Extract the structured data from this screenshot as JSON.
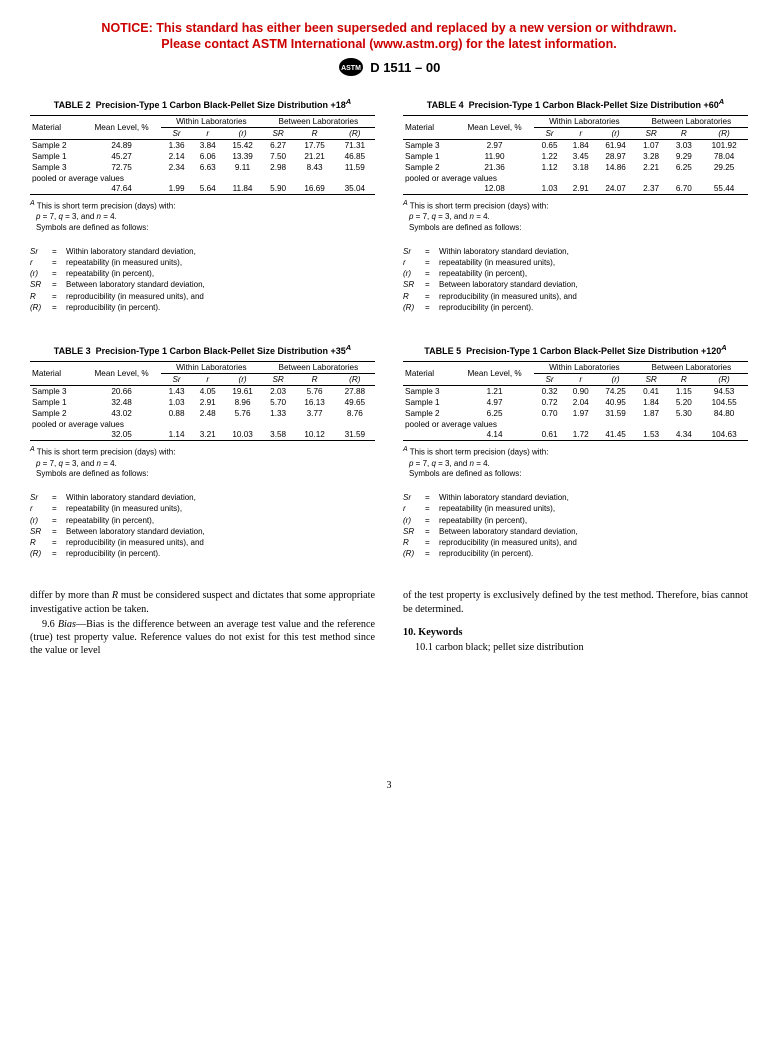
{
  "notice": {
    "line1": "NOTICE: This standard has either been superseded and replaced by a new version or withdrawn.",
    "line2": "Please contact ASTM International (www.astm.org) for the latest information."
  },
  "doc_id": "D 1511 – 00",
  "page_number": "3",
  "tables": {
    "t2": {
      "title_prefix": "TABLE 2",
      "title_rest": "Precision-Type 1 Carbon Black-Pellet Size Distribution +18",
      "sup": "A",
      "headers": {
        "material": "Material",
        "mean": "Mean Level, %",
        "within": "Within Laboratories",
        "between": "Between Laboratories",
        "sr": "Sr",
        "r": "r",
        "r_p": "(r)",
        "SR": "SR",
        "R": "R",
        "R_p": "(R)"
      },
      "rows": [
        {
          "m": "Sample 2",
          "mean": "24.89",
          "sr": "1.36",
          "r": "3.84",
          "rp": "15.42",
          "SR": "6.27",
          "R": "17.75",
          "Rp": "71.31"
        },
        {
          "m": "Sample 1",
          "mean": "45.27",
          "sr": "2.14",
          "r": "6.06",
          "rp": "13.39",
          "SR": "7.50",
          "R": "21.21",
          "Rp": "46.85"
        },
        {
          "m": "Sample 3",
          "mean": "72.75",
          "sr": "2.34",
          "r": "6.63",
          "rp": "9.11",
          "SR": "2.98",
          "R": "8.43",
          "Rp": "11.59"
        }
      ],
      "pooled_label": "pooled or average values",
      "pooled": {
        "mean": "47.64",
        "sr": "1.99",
        "r": "5.64",
        "rp": "11.84",
        "SR": "5.90",
        "R": "16.69",
        "Rp": "35.04"
      }
    },
    "t3": {
      "title_prefix": "TABLE 3",
      "title_rest": "Precision-Type 1 Carbon Black-Pellet Size Distribution +35",
      "sup": "A",
      "rows": [
        {
          "m": "Sample 3",
          "mean": "20.66",
          "sr": "1.43",
          "r": "4.05",
          "rp": "19.61",
          "SR": "2.03",
          "R": "5.76",
          "Rp": "27.88"
        },
        {
          "m": "Sample 1",
          "mean": "32.48",
          "sr": "1.03",
          "r": "2.91",
          "rp": "8.96",
          "SR": "5.70",
          "R": "16.13",
          "Rp": "49.65"
        },
        {
          "m": "Sample 2",
          "mean": "43.02",
          "sr": "0.88",
          "r": "2.48",
          "rp": "5.76",
          "SR": "1.33",
          "R": "3.77",
          "Rp": "8.76"
        }
      ],
      "pooled": {
        "mean": "32.05",
        "sr": "1.14",
        "r": "3.21",
        "rp": "10.03",
        "SR": "3.58",
        "R": "10.12",
        "Rp": "31.59"
      }
    },
    "t4": {
      "title_prefix": "TABLE 4",
      "title_rest": "Precision-Type 1 Carbon Black-Pellet Size Distribution +60",
      "sup": "A",
      "rows": [
        {
          "m": "Sample 3",
          "mean": "2.97",
          "sr": "0.65",
          "r": "1.84",
          "rp": "61.94",
          "SR": "1.07",
          "R": "3.03",
          "Rp": "101.92"
        },
        {
          "m": "Sample 1",
          "mean": "11.90",
          "sr": "1.22",
          "r": "3.45",
          "rp": "28.97",
          "SR": "3.28",
          "R": "9.29",
          "Rp": "78.04"
        },
        {
          "m": "Sample 2",
          "mean": "21.36",
          "sr": "1.12",
          "r": "3.18",
          "rp": "14.86",
          "SR": "2.21",
          "R": "6.25",
          "Rp": "29.25"
        }
      ],
      "pooled": {
        "mean": "12.08",
        "sr": "1.03",
        "r": "2.91",
        "rp": "24.07",
        "SR": "2.37",
        "R": "6.70",
        "Rp": "55.44"
      }
    },
    "t5": {
      "title_prefix": "TABLE 5",
      "title_rest": "Precision-Type 1 Carbon Black-Pellet Size Distribution +120",
      "sup": "A",
      "rows": [
        {
          "m": "Sample 3",
          "mean": "1.21",
          "sr": "0.32",
          "r": "0.90",
          "rp": "74.25",
          "SR": "0.41",
          "R": "1.15",
          "Rp": "94.53"
        },
        {
          "m": "Sample 1",
          "mean": "4.97",
          "sr": "0.72",
          "r": "2.04",
          "rp": "40.95",
          "SR": "1.84",
          "R": "5.20",
          "Rp": "104.55"
        },
        {
          "m": "Sample 2",
          "mean": "6.25",
          "sr": "0.70",
          "r": "1.97",
          "rp": "31.59",
          "SR": "1.87",
          "R": "5.30",
          "Rp": "84.80"
        }
      ],
      "pooled": {
        "mean": "4.14",
        "sr": "0.61",
        "r": "1.72",
        "rp": "41.45",
        "SR": "1.53",
        "R": "4.34",
        "Rp": "104.63"
      }
    }
  },
  "footnote": {
    "line1_pre": "This is short term precision (days) with:",
    "line2": "p = 7, q = 3, and n = 4.",
    "line3": "Symbols are defined as follows:"
  },
  "symbols": [
    {
      "sym": "Sr",
      "def": "Within laboratory standard deviation,"
    },
    {
      "sym": "r",
      "def": "repeatability (in measured units),"
    },
    {
      "sym": "(r)",
      "def": "repeatability (in percent),"
    },
    {
      "sym": "SR",
      "def": "Between laboratory standard deviation,"
    },
    {
      "sym": "R",
      "def": "reproducibility (in measured units), and"
    },
    {
      "sym": "(R)",
      "def": "reproducibility (in percent)."
    }
  ],
  "body": {
    "left_p1": "differ by more than R must be considered suspect and dictates that some appropriate investigative action be taken.",
    "left_p2": "9.6 Bias—Bias is the difference between an average test value and the reference (true) test property value. Reference values do not exist for this test method since the value or level",
    "right_p1": "of the test property is exclusively defined by the test method. Therefore, bias cannot be determined.",
    "right_h": "10. Keywords",
    "right_p2": "10.1 carbon black; pellet size distribution"
  }
}
